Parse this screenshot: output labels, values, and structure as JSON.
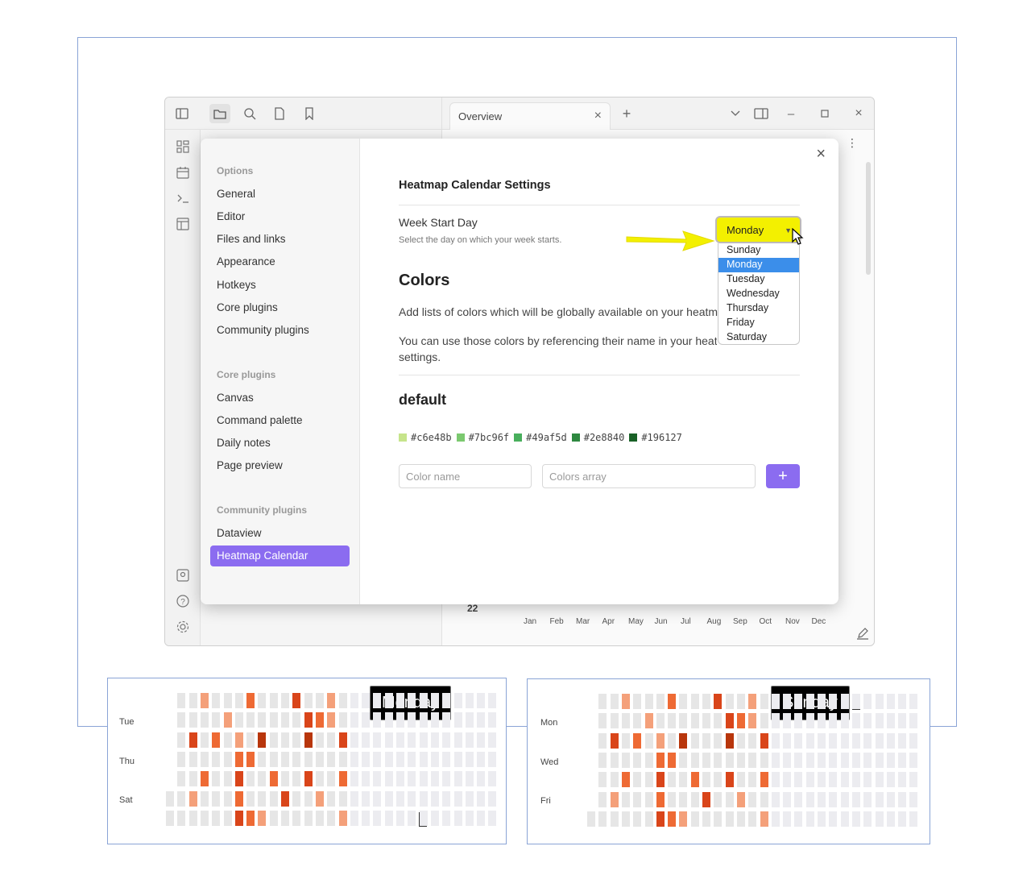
{
  "titlebar": {
    "tab_title": "Overview",
    "icons": [
      "sidebar-toggle-icon",
      "folder-icon",
      "search-icon",
      "file-icon",
      "bookmark-icon"
    ],
    "right_icons": [
      "plus-icon",
      "chevron-down-icon",
      "split-icon",
      "minimize-icon",
      "maximize-icon",
      "close-icon"
    ]
  },
  "ribbon": {
    "top_icons": [
      "grid-icon",
      "calendar-icon",
      "terminal-icon",
      "template-icon"
    ],
    "bottom_icons": [
      "vault-icon",
      "help-icon",
      "settings-gear-icon"
    ]
  },
  "background": {
    "year_label": "22",
    "months": [
      "Jan",
      "Feb",
      "Mar",
      "Apr",
      "May",
      "Jun",
      "Jul",
      "Aug",
      "Sep",
      "Oct",
      "Nov",
      "Dec"
    ]
  },
  "settings": {
    "nav": {
      "options_heading": "Options",
      "options": [
        "General",
        "Editor",
        "Files and links",
        "Appearance",
        "Hotkeys",
        "Core plugins",
        "Community plugins"
      ],
      "core_heading": "Core plugins",
      "core": [
        "Canvas",
        "Command palette",
        "Daily notes",
        "Page preview"
      ],
      "community_heading": "Community plugins",
      "community": [
        "Dataview",
        "Heatmap Calendar"
      ],
      "active": "Heatmap Calendar"
    },
    "title": "Heatmap Calendar Settings",
    "week_start": {
      "name": "Week Start Day",
      "desc": "Select the day on which your week starts.",
      "value": "Monday",
      "options": [
        "Sunday",
        "Monday",
        "Tuesday",
        "Wednesday",
        "Thursday",
        "Friday",
        "Saturday"
      ]
    },
    "colors_heading": "Colors",
    "colors_para1": "Add lists of colors which will be globally available on your heatmaps.",
    "colors_para2_line1": "You can use those colors by referencing their name in your heatmap",
    "colors_para2_line2": "settings.",
    "default_heading": "default",
    "swatches": [
      "#c6e48b",
      "#7bc96f",
      "#49af5d",
      "#2e8840",
      "#196127"
    ],
    "color_name_placeholder": "Color name",
    "colors_array_placeholder": "Colors array",
    "add_label": "+"
  },
  "insets": {
    "monday": {
      "callout": "Monday",
      "labels": [
        "Tue",
        "Thu",
        "Sat"
      ]
    },
    "sunday": {
      "callout": "Sunday",
      "labels": [
        "Mon",
        "Wed",
        "Fri"
      ]
    }
  },
  "colors": {
    "accent": "#8b6cf0",
    "highlight": "#f3f000",
    "select": "#3b8eea",
    "heat_empty": "#e6e6e6",
    "heat_light": "#f4a07a",
    "heat_mid": "#ee6a34",
    "heat_dark": "#d9451a",
    "heat_darkest": "#b8360c"
  }
}
